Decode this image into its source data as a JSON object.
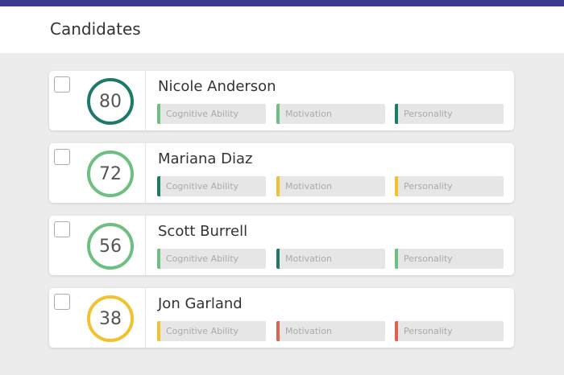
{
  "header": {
    "title": "Candidates"
  },
  "candidates": [
    {
      "name": "Nicole Anderson",
      "score": 80,
      "color": "#1d7a6b",
      "traits": [
        {
          "label": "Cognitive Ability",
          "color": "#6dbf82"
        },
        {
          "label": "Motivation",
          "color": "#6dbf82"
        },
        {
          "label": "Personality",
          "color": "#1d7a6b"
        }
      ]
    },
    {
      "name": "Mariana Diaz",
      "score": 72,
      "color": "#6dbf82",
      "traits": [
        {
          "label": "Cognitive Ability",
          "color": "#1d7a6b"
        },
        {
          "label": "Motivation",
          "color": "#f2c12e"
        },
        {
          "label": "Personality",
          "color": "#f2c12e"
        }
      ]
    },
    {
      "name": "Scott Burrell",
      "score": 56,
      "color": "#6dbf82",
      "traits": [
        {
          "label": "Cognitive Ability",
          "color": "#6dbf82"
        },
        {
          "label": "Motivation",
          "color": "#1d7a6b"
        },
        {
          "label": "Personality",
          "color": "#6dbf82"
        }
      ]
    },
    {
      "name": "Jon Garland",
      "score": 38,
      "color": "#f2c12e",
      "traits": [
        {
          "label": "Cognitive Ability",
          "color": "#f2c12e"
        },
        {
          "label": "Motivation",
          "color": "#d9644f"
        },
        {
          "label": "Personality",
          "color": "#d9644f"
        }
      ]
    }
  ]
}
